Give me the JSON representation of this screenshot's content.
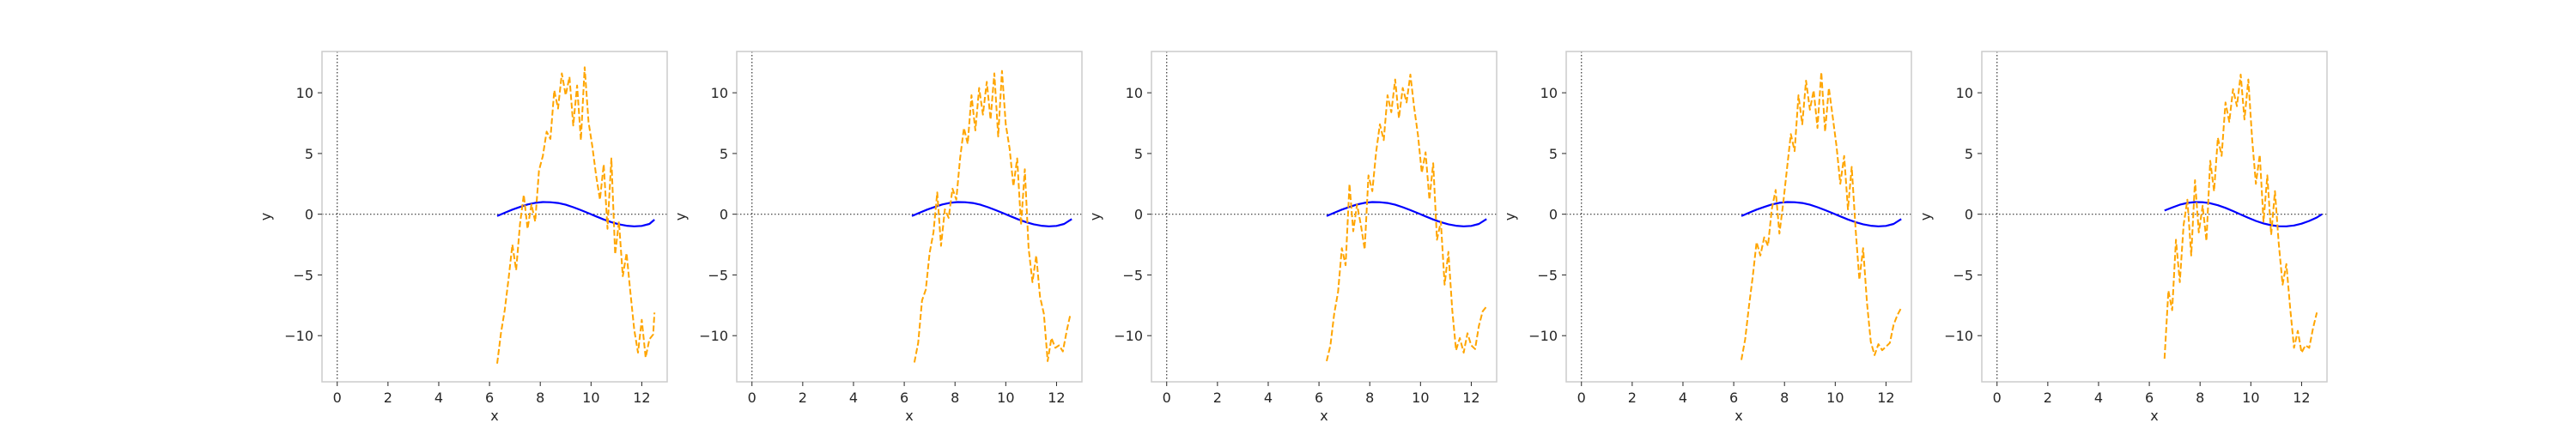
{
  "figure": {
    "background": "#ffffff"
  },
  "style": {
    "spine_color": "#cccccc",
    "zero_line_color": "#333333",
    "sine_color": "#0000ff",
    "noisy_color": "#ffa500"
  },
  "chart_data": [
    {
      "type": "line",
      "title": "",
      "xlabel": "x",
      "ylabel": "y",
      "xlim": [
        -0.6,
        13.0
      ],
      "ylim": [
        -13.8,
        13.4
      ],
      "xticks": [
        0,
        2,
        4,
        6,
        8,
        10,
        12
      ],
      "yticks": [
        -10,
        -5,
        0,
        5,
        10
      ],
      "grid": false,
      "reference_lines": [
        {
          "axis": "y",
          "value": 0,
          "style": "dotted"
        },
        {
          "axis": "x",
          "value": 0,
          "style": "dotted"
        }
      ],
      "series": [
        {
          "style": "solid",
          "color": "#0000ff",
          "x": [
            6.3,
            6.6,
            6.9,
            7.2,
            7.5,
            7.8,
            8.1,
            8.4,
            8.7,
            9.0,
            9.3,
            9.6,
            9.9,
            10.2,
            10.5,
            10.8,
            11.1,
            11.4,
            11.7,
            12.0,
            12.3,
            12.5
          ],
          "y": [
            -0.15,
            0.12,
            0.38,
            0.6,
            0.8,
            0.94,
            1.0,
            0.99,
            0.92,
            0.78,
            0.58,
            0.34,
            0.08,
            -0.18,
            -0.43,
            -0.65,
            -0.83,
            -0.95,
            -1.0,
            -0.96,
            -0.8,
            -0.45
          ]
        },
        {
          "style": "dashed",
          "color": "#ffa500",
          "x": [
            6.3,
            6.45,
            6.6,
            6.75,
            6.9,
            7.05,
            7.2,
            7.35,
            7.5,
            7.65,
            7.8,
            7.95,
            8.1,
            8.25,
            8.4,
            8.55,
            8.7,
            8.85,
            9.0,
            9.15,
            9.3,
            9.45,
            9.6,
            9.75,
            9.9,
            10.05,
            10.2,
            10.35,
            10.5,
            10.65,
            10.8,
            10.95,
            11.1,
            11.25,
            11.4,
            11.55,
            11.7,
            11.85,
            12.0,
            12.15,
            12.3,
            12.45,
            12.5
          ],
          "y": [
            -12.3,
            -9.8,
            -7.9,
            -5.3,
            -2.5,
            -4.6,
            -0.8,
            1.6,
            -1.2,
            0.8,
            -0.6,
            3.6,
            4.8,
            6.8,
            6.2,
            10.2,
            8.7,
            11.6,
            9.8,
            11.3,
            7.3,
            10.6,
            6.1,
            12.1,
            7.6,
            5.6,
            3.2,
            1.2,
            4.1,
            -1.2,
            4.6,
            -3.3,
            -0.6,
            -5.1,
            -3.2,
            -6.4,
            -9.5,
            -11.4,
            -8.7,
            -11.8,
            -10.3,
            -9.9,
            -8.1
          ]
        }
      ]
    },
    {
      "type": "line",
      "title": "",
      "xlabel": "x",
      "ylabel": "y",
      "xlim": [
        -0.6,
        13.0
      ],
      "ylim": [
        -13.8,
        13.4
      ],
      "xticks": [
        0,
        2,
        4,
        6,
        8,
        10,
        12
      ],
      "yticks": [
        -10,
        -5,
        0,
        5,
        10
      ],
      "grid": false,
      "reference_lines": [
        {
          "axis": "y",
          "value": 0,
          "style": "dotted"
        },
        {
          "axis": "x",
          "value": 0,
          "style": "dotted"
        }
      ],
      "series": [
        {
          "style": "solid",
          "color": "#0000ff",
          "x": [
            6.3,
            6.6,
            6.9,
            7.2,
            7.5,
            7.8,
            8.1,
            8.4,
            8.7,
            9.0,
            9.3,
            9.6,
            9.9,
            10.2,
            10.5,
            10.8,
            11.1,
            11.4,
            11.7,
            12.0,
            12.3,
            12.6
          ],
          "y": [
            -0.15,
            0.12,
            0.38,
            0.6,
            0.8,
            0.94,
            1.0,
            0.99,
            0.92,
            0.78,
            0.58,
            0.34,
            0.08,
            -0.18,
            -0.43,
            -0.65,
            -0.83,
            -0.95,
            -1.0,
            -0.96,
            -0.8,
            -0.4
          ]
        },
        {
          "style": "dashed",
          "color": "#ffa500",
          "x": [
            6.4,
            6.55,
            6.7,
            6.85,
            7.0,
            7.15,
            7.3,
            7.45,
            7.6,
            7.75,
            7.9,
            8.05,
            8.2,
            8.35,
            8.5,
            8.65,
            8.8,
            8.95,
            9.1,
            9.25,
            9.4,
            9.55,
            9.7,
            9.85,
            10.0,
            10.15,
            10.3,
            10.45,
            10.6,
            10.75,
            10.9,
            11.05,
            11.2,
            11.35,
            11.5,
            11.65,
            11.8,
            11.95,
            12.1,
            12.25,
            12.4,
            12.55
          ],
          "y": [
            -12.2,
            -10.6,
            -7.1,
            -6.2,
            -3.2,
            -1.5,
            1.8,
            -2.6,
            0.4,
            -0.3,
            2.1,
            1.2,
            4.6,
            7.1,
            5.8,
            9.8,
            6.9,
            10.4,
            8.2,
            10.9,
            7.8,
            11.6,
            6.4,
            11.8,
            7.4,
            5.4,
            2.3,
            4.6,
            -0.9,
            3.7,
            -2.8,
            -5.6,
            -3.4,
            -6.8,
            -8.2,
            -12.1,
            -10.2,
            -11.0,
            -10.8,
            -11.3,
            -9.6,
            -8.2
          ]
        }
      ]
    },
    {
      "type": "line",
      "title": "",
      "xlabel": "x",
      "ylabel": "y",
      "xlim": [
        -0.6,
        13.0
      ],
      "ylim": [
        -13.8,
        13.4
      ],
      "xticks": [
        0,
        2,
        4,
        6,
        8,
        10,
        12
      ],
      "yticks": [
        -10,
        -5,
        0,
        5,
        10
      ],
      "grid": false,
      "reference_lines": [
        {
          "axis": "y",
          "value": 0,
          "style": "dotted"
        },
        {
          "axis": "x",
          "value": 0,
          "style": "dotted"
        }
      ],
      "series": [
        {
          "style": "solid",
          "color": "#0000ff",
          "x": [
            6.3,
            6.6,
            6.9,
            7.2,
            7.5,
            7.8,
            8.1,
            8.4,
            8.7,
            9.0,
            9.3,
            9.6,
            9.9,
            10.2,
            10.5,
            10.8,
            11.1,
            11.4,
            11.7,
            12.0,
            12.3,
            12.6
          ],
          "y": [
            -0.15,
            0.12,
            0.38,
            0.6,
            0.8,
            0.94,
            1.0,
            0.99,
            0.92,
            0.78,
            0.58,
            0.34,
            0.08,
            -0.18,
            -0.43,
            -0.65,
            -0.83,
            -0.95,
            -1.0,
            -0.96,
            -0.8,
            -0.4
          ]
        },
        {
          "style": "dashed",
          "color": "#ffa500",
          "x": [
            6.3,
            6.45,
            6.6,
            6.75,
            6.9,
            7.05,
            7.2,
            7.35,
            7.5,
            7.65,
            7.8,
            7.95,
            8.1,
            8.25,
            8.4,
            8.55,
            8.7,
            8.85,
            9.0,
            9.15,
            9.3,
            9.45,
            9.6,
            9.75,
            9.9,
            10.05,
            10.2,
            10.35,
            10.5,
            10.65,
            10.8,
            10.95,
            11.1,
            11.25,
            11.4,
            11.55,
            11.7,
            11.85,
            12.0,
            12.15,
            12.3,
            12.45,
            12.6
          ],
          "y": [
            -12.1,
            -10.8,
            -8.2,
            -6.4,
            -2.8,
            -4.2,
            2.5,
            -1.4,
            0.8,
            -0.9,
            -2.9,
            3.2,
            1.9,
            5.1,
            7.4,
            6.1,
            9.8,
            8.4,
            11.1,
            7.9,
            10.4,
            9.2,
            11.5,
            8.8,
            6.5,
            3.4,
            5.1,
            1.2,
            4.2,
            -2.1,
            -0.6,
            -5.8,
            -3.1,
            -7.9,
            -11.2,
            -10.2,
            -11.4,
            -9.8,
            -10.8,
            -11.1,
            -9.2,
            -8.0,
            -7.6
          ]
        }
      ]
    },
    {
      "type": "line",
      "title": "",
      "xlabel": "x",
      "ylabel": "y",
      "xlim": [
        -0.6,
        13.0
      ],
      "ylim": [
        -13.8,
        13.4
      ],
      "xticks": [
        0,
        2,
        4,
        6,
        8,
        10,
        12
      ],
      "yticks": [
        -10,
        -5,
        0,
        5,
        10
      ],
      "grid": false,
      "reference_lines": [
        {
          "axis": "y",
          "value": 0,
          "style": "dotted"
        },
        {
          "axis": "x",
          "value": 0,
          "style": "dotted"
        }
      ],
      "series": [
        {
          "style": "solid",
          "color": "#0000ff",
          "x": [
            6.3,
            6.6,
            6.9,
            7.2,
            7.5,
            7.8,
            8.1,
            8.4,
            8.7,
            9.0,
            9.3,
            9.6,
            9.9,
            10.2,
            10.5,
            10.8,
            11.1,
            11.4,
            11.7,
            12.0,
            12.3,
            12.6
          ],
          "y": [
            -0.15,
            0.12,
            0.38,
            0.6,
            0.8,
            0.94,
            1.0,
            0.99,
            0.92,
            0.78,
            0.58,
            0.34,
            0.08,
            -0.18,
            -0.43,
            -0.65,
            -0.83,
            -0.95,
            -1.0,
            -0.96,
            -0.8,
            -0.4
          ]
        },
        {
          "style": "dashed",
          "color": "#ffa500",
          "x": [
            6.3,
            6.45,
            6.6,
            6.75,
            6.9,
            7.05,
            7.2,
            7.35,
            7.5,
            7.65,
            7.8,
            7.95,
            8.1,
            8.25,
            8.4,
            8.55,
            8.7,
            8.85,
            9.0,
            9.15,
            9.3,
            9.45,
            9.6,
            9.75,
            9.9,
            10.05,
            10.2,
            10.35,
            10.5,
            10.65,
            10.8,
            10.95,
            11.1,
            11.25,
            11.4,
            11.55,
            11.7,
            11.85,
            12.0,
            12.15,
            12.3,
            12.45,
            12.6
          ],
          "y": [
            -12.0,
            -10.3,
            -7.6,
            -5.1,
            -2.3,
            -3.4,
            -1.9,
            -2.6,
            0.4,
            2.0,
            -1.6,
            0.9,
            3.8,
            6.6,
            5.2,
            9.8,
            7.4,
            11.0,
            8.6,
            10.2,
            7.1,
            11.7,
            6.8,
            10.4,
            8.0,
            5.6,
            2.5,
            4.8,
            0.4,
            3.9,
            -1.2,
            -5.4,
            -2.8,
            -7.3,
            -10.5,
            -11.6,
            -10.7,
            -11.2,
            -10.9,
            -10.6,
            -9.1,
            -8.3,
            -7.7
          ]
        }
      ]
    },
    {
      "type": "line",
      "title": "",
      "xlabel": "x",
      "ylabel": "y",
      "xlim": [
        -0.6,
        13.0
      ],
      "ylim": [
        -13.8,
        13.4
      ],
      "xticks": [
        0,
        2,
        4,
        6,
        8,
        10,
        12
      ],
      "yticks": [
        -10,
        -5,
        0,
        5,
        10
      ],
      "grid": false,
      "reference_lines": [
        {
          "axis": "y",
          "value": 0,
          "style": "dotted"
        },
        {
          "axis": "x",
          "value": 0,
          "style": "dotted"
        }
      ],
      "series": [
        {
          "style": "solid",
          "color": "#0000ff",
          "x": [
            6.6,
            6.9,
            7.2,
            7.5,
            7.8,
            8.1,
            8.4,
            8.7,
            9.0,
            9.3,
            9.6,
            9.9,
            10.2,
            10.5,
            10.8,
            11.1,
            11.4,
            11.7,
            12.0,
            12.3,
            12.6,
            12.8
          ],
          "y": [
            0.3,
            0.55,
            0.78,
            0.93,
            1.0,
            0.99,
            0.9,
            0.74,
            0.52,
            0.26,
            -0.02,
            -0.3,
            -0.55,
            -0.76,
            -0.91,
            -0.99,
            -1.0,
            -0.93,
            -0.78,
            -0.55,
            -0.27,
            0.0
          ]
        },
        {
          "style": "dashed",
          "color": "#ffa500",
          "x": [
            6.6,
            6.75,
            6.9,
            7.05,
            7.2,
            7.35,
            7.5,
            7.65,
            7.8,
            7.95,
            8.1,
            8.25,
            8.4,
            8.55,
            8.7,
            8.85,
            9.0,
            9.15,
            9.3,
            9.45,
            9.6,
            9.75,
            9.9,
            10.05,
            10.2,
            10.35,
            10.5,
            10.65,
            10.8,
            10.95,
            11.1,
            11.25,
            11.4,
            11.55,
            11.7,
            11.85,
            12.0,
            12.15,
            12.3,
            12.45,
            12.6
          ],
          "y": [
            -11.9,
            -6.3,
            -7.9,
            -2.1,
            -5.6,
            -0.9,
            1.2,
            -3.4,
            2.8,
            -1.5,
            0.7,
            -2.2,
            4.4,
            1.9,
            6.3,
            4.8,
            9.2,
            7.6,
            10.3,
            8.9,
            11.5,
            7.8,
            11.1,
            6.2,
            2.5,
            4.9,
            -0.6,
            3.2,
            -1.7,
            1.9,
            -2.4,
            -5.8,
            -4.1,
            -7.7,
            -11.0,
            -9.6,
            -11.4,
            -10.8,
            -11.0,
            -9.4,
            -8.1
          ]
        }
      ]
    }
  ]
}
